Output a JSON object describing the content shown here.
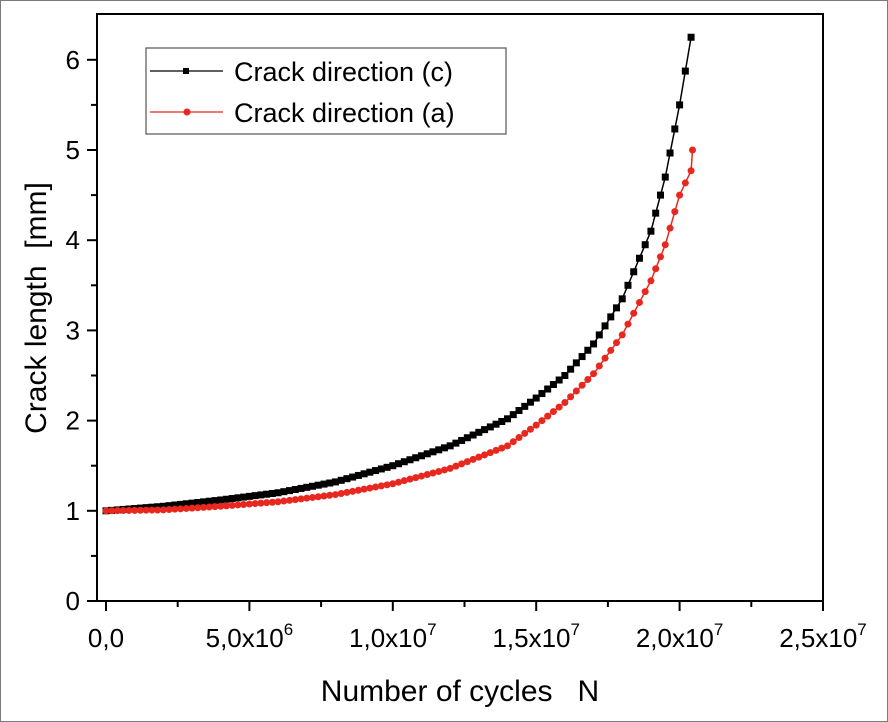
{
  "chart_data": {
    "type": "line",
    "title": "",
    "xlabel": "Number of cycles   N",
    "ylabel": "Crack length  [mm]",
    "xlim": [
      -300000,
      25000000
    ],
    "ylim": [
      0,
      6.5
    ],
    "grid": false,
    "legend_position": "upper-left",
    "x_ticks": [
      {
        "value": 0,
        "label": "0,0",
        "exp": ""
      },
      {
        "value": 5000000,
        "label": "5,0x10",
        "exp": "6"
      },
      {
        "value": 10000000,
        "label": "1,0x10",
        "exp": "7"
      },
      {
        "value": 15000000,
        "label": "1,5x10",
        "exp": "7"
      },
      {
        "value": 20000000,
        "label": "2,0x10",
        "exp": "7"
      },
      {
        "value": 25000000,
        "label": "2,5x10",
        "exp": "7"
      }
    ],
    "y_ticks": [
      0,
      1,
      2,
      3,
      4,
      5,
      6
    ],
    "series": [
      {
        "name": "Crack direction (c)",
        "color": "#000000",
        "marker": "square",
        "x": [
          0,
          2000000,
          4000000,
          6000000,
          8000000,
          10000000,
          12000000,
          14000000,
          15000000,
          16000000,
          17000000,
          18000000,
          19000000,
          19500000,
          20000000,
          20400000
        ],
        "values": [
          1.0,
          1.05,
          1.12,
          1.2,
          1.32,
          1.5,
          1.72,
          2.02,
          2.25,
          2.5,
          2.85,
          3.35,
          4.1,
          4.7,
          5.5,
          6.25
        ]
      },
      {
        "name": "Crack direction (a)",
        "color": "#e8281e",
        "marker": "circle",
        "x": [
          0,
          2000000,
          4000000,
          6000000,
          8000000,
          10000000,
          12000000,
          14000000,
          15000000,
          16000000,
          17000000,
          18000000,
          19000000,
          19500000,
          20000000,
          20400000,
          20450000
        ],
        "values": [
          1.0,
          1.01,
          1.05,
          1.1,
          1.18,
          1.3,
          1.47,
          1.72,
          1.95,
          2.2,
          2.52,
          2.95,
          3.55,
          3.95,
          4.5,
          4.77,
          5.0
        ]
      }
    ]
  }
}
